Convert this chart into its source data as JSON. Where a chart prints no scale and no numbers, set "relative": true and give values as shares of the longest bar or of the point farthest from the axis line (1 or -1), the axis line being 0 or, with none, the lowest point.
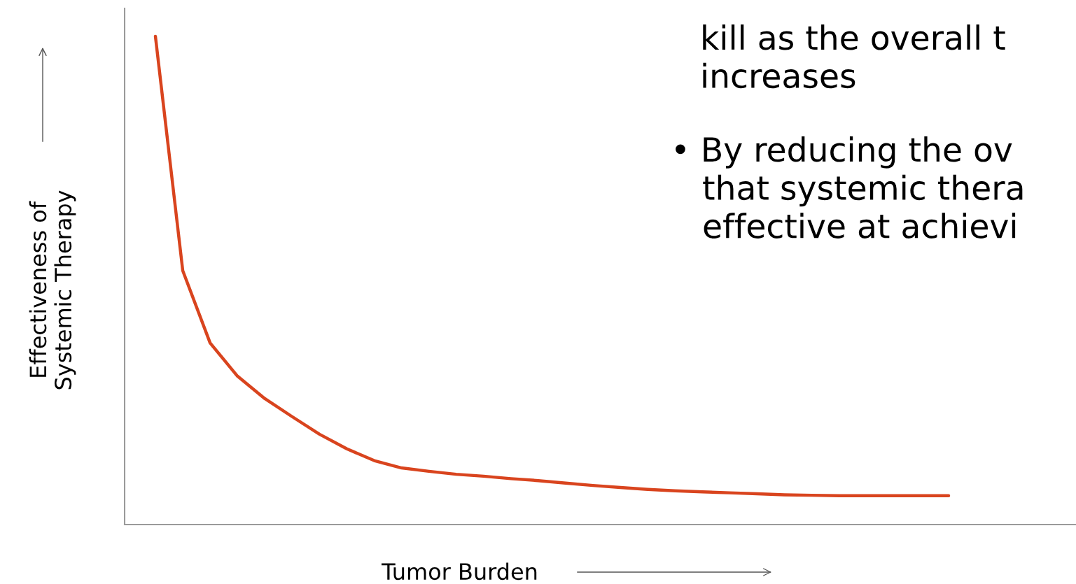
{
  "chart_data": {
    "type": "line",
    "relative": true,
    "xlabel": "Tumor Burden",
    "ylabel": "Effectiveness of\nSystemic Therapy",
    "categories": [
      null,
      null,
      null,
      null,
      null,
      null,
      null,
      null,
      null,
      null,
      null,
      null,
      null,
      null,
      null,
      null,
      null,
      null,
      null,
      null,
      null,
      null,
      null,
      null,
      null,
      null,
      null,
      null,
      null,
      null
    ],
    "series": [
      {
        "color": "#d9441e",
        "values": [
          1.0,
          0.52,
          0.372,
          0.304,
          0.258,
          0.221,
          0.185,
          0.155,
          0.131,
          0.116,
          0.109,
          0.103,
          0.099,
          0.094,
          0.09,
          0.085,
          0.08,
          0.076,
          0.072,
          0.069,
          0.067,
          0.065,
          0.063,
          0.061,
          0.06,
          0.059,
          0.059,
          0.059,
          0.059,
          0.059
        ]
      }
    ],
    "annotations": [
      "kill as the overall t\nincreases",
      "• By reducing the ov\n   that systemic thera\n   effective at achievi"
    ],
    "legend": false,
    "marker": "none",
    "line_style": "solid"
  }
}
